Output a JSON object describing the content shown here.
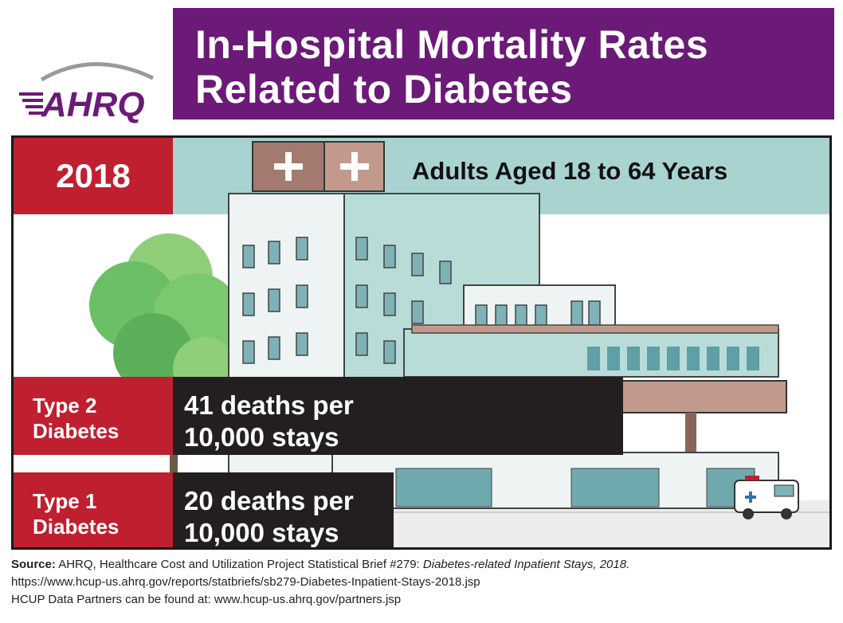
{
  "header": {
    "logo_text": "AHRQ",
    "title_line1": "In-Hospital Mortality Rates",
    "title_line2": "Related to Diabetes",
    "title_bg": "#6b1a78"
  },
  "panel": {
    "year": "2018",
    "subtitle": "Adults Aged 18 to 64 Years",
    "accent_red": "#c01f2f",
    "value_bg": "#231f20"
  },
  "chart_data": {
    "type": "table",
    "title": "In-Hospital Mortality Rates Related to Diabetes",
    "rows": [
      {
        "label_line1": "Type 2",
        "label_line2": "Diabetes",
        "value": 41,
        "value_line1": "41 deaths per",
        "value_line2": "10,000 stays"
      },
      {
        "label_line1": "Type 1",
        "label_line2": "Diabetes",
        "value": 20,
        "value_line1": "20 deaths per",
        "value_line2": "10,000 stays"
      }
    ]
  },
  "footer": {
    "source_label": "Source:",
    "source_text": " AHRQ, Healthcare Cost and Utilization Project Statistical Brief #279: ",
    "source_title": "Diabetes-related Inpatient Stays, 2018.",
    "url": "https://www.hcup-us.ahrq.gov/reports/statbriefs/sb279-Diabetes-Inpatient-Stays-2018.jsp",
    "partners": "HCUP Data Partners can be found at: www.hcup-us.ahrq.gov/partners.jsp"
  }
}
